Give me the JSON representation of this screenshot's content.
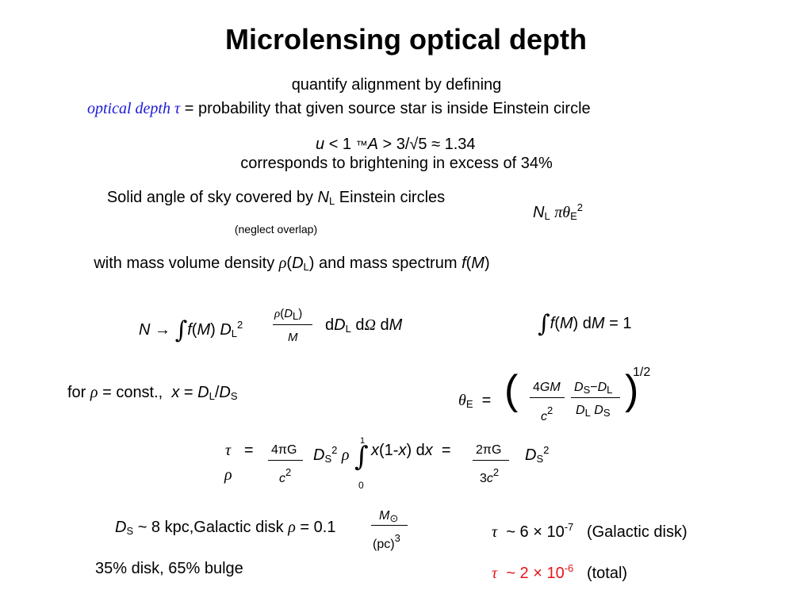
{
  "title": "Microlensing optical depth",
  "definition": {
    "line1": "quantify alignment by defining",
    "term": "optical depth τ",
    "equals": "=",
    "rest": "probability that given source star is inside Einstein circle"
  },
  "condition": {
    "parts": [
      "u",
      "< 1",
      "™",
      "A",
      "> 3/√5 ≈ 1.34"
    ],
    "note": "corresponds to brightening in excess of 34%"
  },
  "solid_angle": {
    "parts": [
      "Solid angle of sky covered by",
      "N",
      "L",
      "Einstein circles"
    ],
    "note": "(neglect overlap)",
    "formula": [
      "N",
      "L",
      "π",
      "θ",
      "E",
      "2"
    ]
  },
  "density": {
    "parts": [
      "with mass volume density",
      "ρ",
      "(",
      "D",
      "L",
      ")",
      "and mass spectrum",
      "f",
      "(",
      "M",
      ")"
    ]
  },
  "number": {
    "parts": [
      "N →",
      "∫",
      "f",
      "(",
      "M",
      ")",
      "D",
      "L",
      "2",
      "ρ",
      "(",
      "D",
      "L",
      ")",
      "M",
      "d",
      "D",
      "L",
      "d",
      "Ω",
      "d",
      "M"
    ]
  },
  "normalization": {
    "parts": [
      "∫",
      "f",
      "(",
      "M",
      ")",
      "d",
      "M",
      "= 1"
    ]
  },
  "constant": {
    "parts": [
      "for",
      "ρ",
      "= const.,",
      "x",
      "=",
      "D",
      "L",
      "/",
      "D",
      "S"
    ]
  },
  "einstein_angle": {
    "parts": [
      "θ",
      "E",
      "=",
      "(",
      "4",
      "GM",
      "c",
      "2",
      "D",
      "S",
      "−",
      "D",
      "L",
      "D",
      "L",
      "D",
      "S",
      ")",
      "1/2"
    ]
  },
  "tau": {
    "parts": [
      "τ",
      "=",
      "ρ",
      "4πG",
      "c",
      "2",
      "D",
      "S",
      "2",
      "ρ",
      "1",
      "∫",
      "0",
      "x",
      "(1-",
      "x",
      ") d",
      "x",
      "=",
      "2πG",
      "3",
      "c",
      "2",
      "D",
      "S",
      "2"
    ]
  },
  "disk": {
    "parts": [
      "D",
      "S",
      "~ 8 kpc,",
      "Galactic disk",
      "ρ",
      "= 0.1",
      "M",
      "⊙",
      "(pc)",
      "3"
    ]
  },
  "tau_disk": {
    "parts": [
      "τ",
      "~ 6 × 10",
      "-7",
      "(Galactic disk)"
    ]
  },
  "fraction": "35% disk, 65% bulge",
  "tau_total": {
    "parts": [
      "τ",
      "~ 2 × 10",
      "-6",
      "(total)"
    ]
  }
}
